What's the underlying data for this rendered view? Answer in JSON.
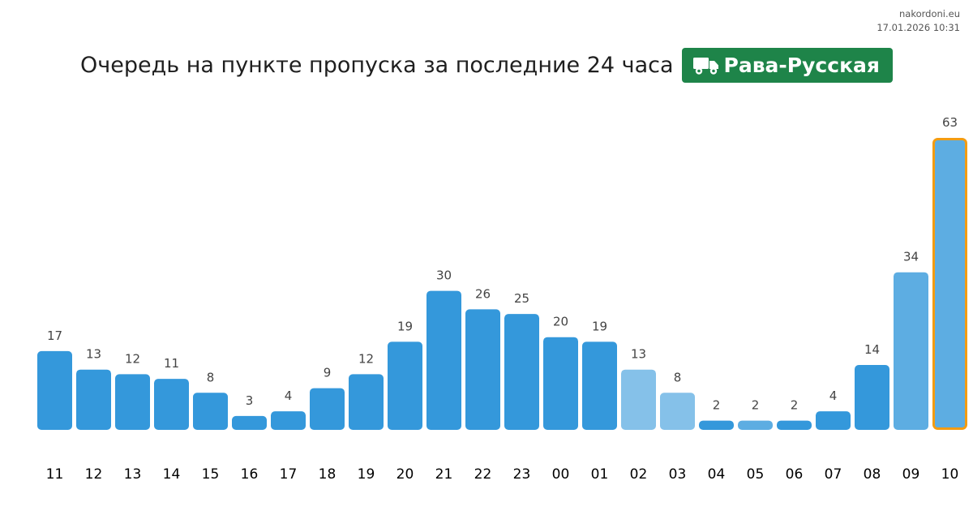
{
  "source": {
    "site": "nakordoni.eu",
    "timestamp": "17.01.2026 10:31"
  },
  "header": {
    "title": "Очередь на пункте пропуска за последние 24 часа",
    "badge_label": "Рава-Русская",
    "badge_icon": "truck-icon",
    "badge_color": "#1e8449"
  },
  "chart_data": {
    "type": "bar",
    "title": "Очередь на пункте пропуска за последние 24 часа",
    "xlabel": "",
    "ylabel": "",
    "grid": false,
    "legend": "none",
    "ylim": [
      0,
      63
    ],
    "categories": [
      "11",
      "12",
      "13",
      "14",
      "15",
      "16",
      "17",
      "18",
      "19",
      "20",
      "21",
      "22",
      "23",
      "00",
      "01",
      "02",
      "03",
      "04",
      "05",
      "06",
      "07",
      "08",
      "09",
      "10"
    ],
    "values": [
      17,
      13,
      12,
      11,
      8,
      3,
      4,
      9,
      12,
      19,
      30,
      26,
      25,
      20,
      19,
      13,
      8,
      2,
      2,
      2,
      4,
      14,
      34,
      63
    ],
    "bar_styles": [
      "normal",
      "normal",
      "normal",
      "normal",
      "normal",
      "normal",
      "normal",
      "normal",
      "normal",
      "normal",
      "normal",
      "normal",
      "normal",
      "normal",
      "normal",
      "light",
      "light",
      "normal",
      "medium",
      "normal",
      "normal",
      "normal",
      "medium",
      "current"
    ],
    "colors": {
      "normal": "#3498db",
      "light": "#85c1e9",
      "medium": "#5dade2",
      "current_outline": "#f39c12",
      "value_label": "#444444",
      "category_label": "#000000"
    }
  }
}
